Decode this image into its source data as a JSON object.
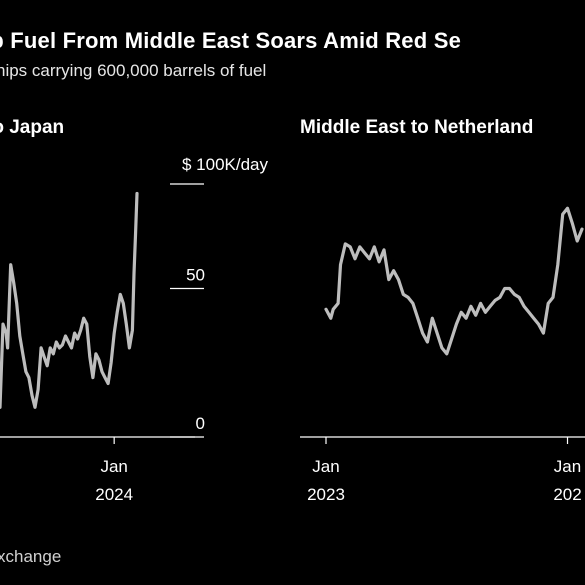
{
  "header": {
    "title": "ip Fuel From Middle East Soars Amid Red Se",
    "subtitle": "hips carrying 600,000 barrels of fuel"
  },
  "footer": {
    "source": "xchange"
  },
  "colors": {
    "background": "#000000",
    "line": "#bdbdbd",
    "text": "#ffffff",
    "axis": "#ffffff"
  },
  "chart_data": [
    {
      "type": "line",
      "panel_title": "to Japan",
      "unit_label": "$ 100K/day",
      "y_ticks": [
        0,
        50
      ],
      "x_ticks": [
        {
          "label": "Jan",
          "sublabel": "2024",
          "x": 2024.0
        }
      ],
      "ylim": [
        0,
        100
      ],
      "grid": false,
      "series": [
        {
          "x": [
            2023.25,
            2023.27,
            2023.29,
            2023.3,
            2023.32,
            2023.34,
            2023.36,
            2023.38,
            2023.4,
            2023.42,
            2023.44,
            2023.46,
            2023.48,
            2023.5,
            2023.52,
            2023.54,
            2023.56,
            2023.58,
            2023.6,
            2023.62,
            2023.64,
            2023.66,
            2023.68,
            2023.7,
            2023.72,
            2023.74,
            2023.76,
            2023.78,
            2023.8,
            2023.82,
            2023.84,
            2023.86,
            2023.88,
            2023.9,
            2023.92,
            2023.94,
            2023.96,
            2023.98,
            2024.0,
            2024.02,
            2024.04,
            2024.06,
            2024.08,
            2024.1,
            2024.12,
            2024.13,
            2024.14,
            2024.15
          ],
          "y": [
            10,
            38,
            35,
            30,
            58,
            52,
            45,
            34,
            28,
            22,
            20,
            14,
            10,
            16,
            30,
            27,
            24,
            30,
            28,
            32,
            30,
            31,
            34,
            32,
            30,
            35,
            33,
            36,
            40,
            38,
            27,
            20,
            28,
            26,
            22,
            20,
            18,
            25,
            35,
            42,
            48,
            45,
            38,
            30,
            36,
            55,
            68,
            82
          ]
        }
      ]
    },
    {
      "type": "line",
      "panel_title": "Middle East to Netherland",
      "x_ticks": [
        {
          "label": "Jan",
          "sublabel": "2023",
          "x": 2023.0
        },
        {
          "label": "Jan",
          "sublabel": "202",
          "x": 2024.0
        }
      ],
      "ylim": [
        0,
        100
      ],
      "grid": false,
      "series": [
        {
          "x": [
            2023.0,
            2023.02,
            2023.03,
            2023.05,
            2023.06,
            2023.08,
            2023.1,
            2023.12,
            2023.14,
            2023.16,
            2023.18,
            2023.2,
            2023.22,
            2023.24,
            2023.26,
            2023.28,
            2023.3,
            2023.32,
            2023.34,
            2023.36,
            2023.38,
            2023.4,
            2023.42,
            2023.44,
            2023.46,
            2023.48,
            2023.5,
            2023.52,
            2023.54,
            2023.56,
            2023.58,
            2023.6,
            2023.62,
            2023.64,
            2023.66,
            2023.68,
            2023.7,
            2023.72,
            2023.74,
            2023.76,
            2023.78,
            2023.8,
            2023.82,
            2023.84,
            2023.86,
            2023.88,
            2023.9,
            2023.92,
            2023.94,
            2023.96,
            2023.98,
            2024.0,
            2024.02,
            2024.04,
            2024.06
          ],
          "y": [
            43,
            40,
            43,
            45,
            58,
            65,
            64,
            60,
            64,
            62,
            60,
            64,
            59,
            63,
            53,
            56,
            53,
            48,
            47,
            45,
            40,
            35,
            32,
            40,
            35,
            30,
            28,
            33,
            38,
            42,
            40,
            44,
            41,
            45,
            42,
            44,
            46,
            47,
            50,
            50,
            48,
            47,
            44,
            42,
            40,
            38,
            35,
            45,
            47,
            58,
            75,
            77,
            72,
            66,
            70
          ]
        }
      ]
    }
  ]
}
